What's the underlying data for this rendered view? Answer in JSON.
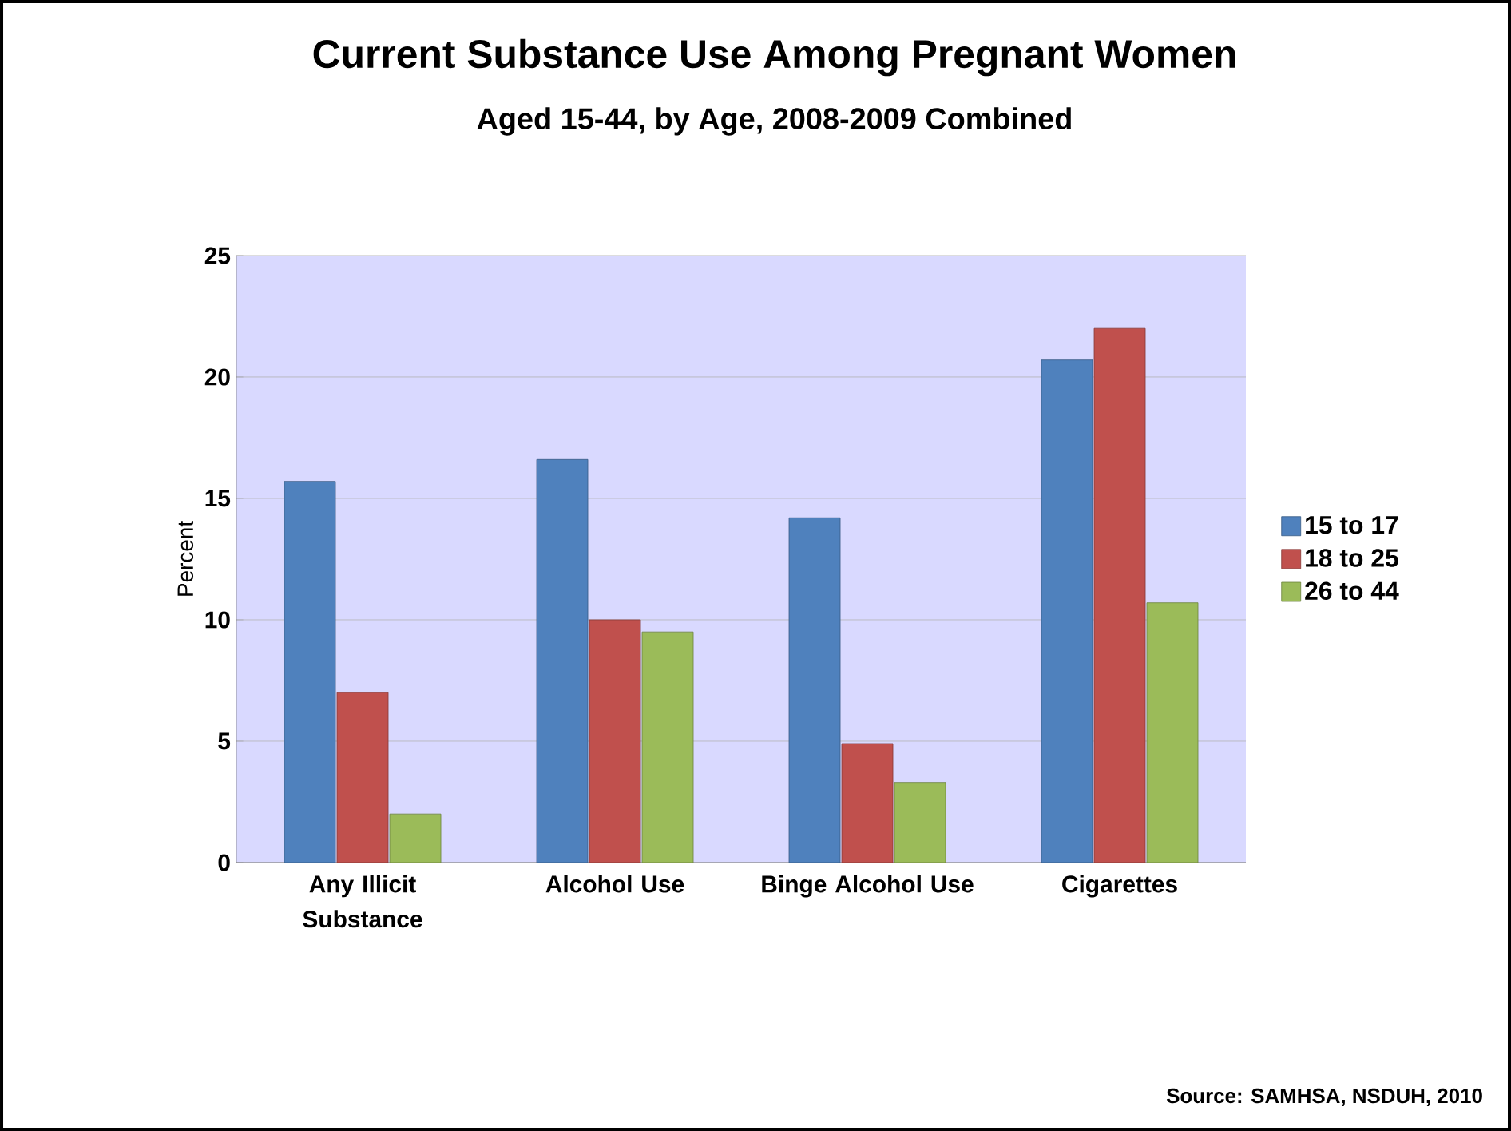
{
  "chart_data": {
    "type": "bar",
    "title": "Current Substance Use Among Pregnant Women",
    "subtitle": "Aged 15-44, by Age, 2008-2009 Combined",
    "ylabel": "Percent",
    "categories": [
      "Any Illicit Substance",
      "Alcohol Use",
      "Binge Alcohol Use",
      "Cigarettes"
    ],
    "series": [
      {
        "name": "15 to 17",
        "color": "#4f81bd",
        "values": [
          15.7,
          16.6,
          14.2,
          20.7
        ]
      },
      {
        "name": "18 to 25",
        "color": "#c0504d",
        "values": [
          7.0,
          10.0,
          4.9,
          22.0
        ]
      },
      {
        "name": "26 to 44",
        "color": "#9bbb59",
        "values": [
          2.0,
          9.5,
          3.3,
          10.7
        ]
      }
    ],
    "ylim": [
      0,
      25
    ],
    "yticks": [
      0,
      5,
      10,
      15,
      20,
      25
    ],
    "grid": "y",
    "legend": "right",
    "annotations": [
      "Source: SAMHSA, NSDUH, 2010"
    ]
  }
}
